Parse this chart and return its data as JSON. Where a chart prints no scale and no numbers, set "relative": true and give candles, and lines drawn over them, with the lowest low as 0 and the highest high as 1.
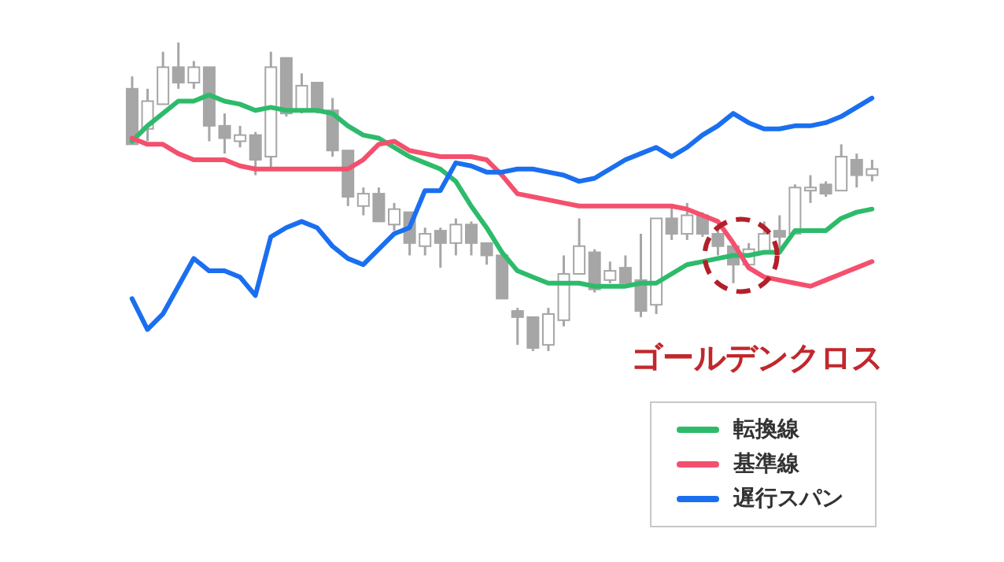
{
  "chart_data": {
    "type": "candlestick",
    "relative": true,
    "color": "#a6a6a6",
    "categories": [
      null,
      null,
      null,
      null,
      null,
      null,
      null,
      null,
      null,
      null,
      null,
      null,
      null,
      null,
      null,
      null,
      null,
      null,
      null,
      null,
      null,
      null,
      null,
      null,
      null,
      null,
      null,
      null,
      null,
      null,
      null,
      null,
      null,
      null,
      null,
      null,
      null,
      null,
      null,
      null,
      null,
      null,
      null,
      null,
      null,
      null,
      null,
      null,
      null
    ],
    "ohlc": [
      [
        0.85,
        0.89,
        0.67,
        0.67
      ],
      [
        0.72,
        0.85,
        0.68,
        0.81
      ],
      [
        0.8,
        0.97,
        0.8,
        0.92
      ],
      [
        0.92,
        1,
        0.85,
        0.87
      ],
      [
        0.87,
        0.94,
        0.85,
        0.92
      ],
      [
        0.92,
        0.92,
        0.68,
        0.73
      ],
      [
        0.73,
        0.77,
        0.64,
        0.69
      ],
      [
        0.68,
        0.73,
        0.66,
        0.7
      ],
      [
        0.7,
        0.71,
        0.57,
        0.62
      ],
      [
        0.63,
        0.97,
        0.59,
        0.92
      ],
      [
        0.95,
        0.95,
        0.76,
        0.77
      ],
      [
        0.78,
        0.9,
        0.77,
        0.86
      ],
      [
        0.87,
        0.87,
        0.77,
        0.78
      ],
      [
        0.78,
        0.82,
        0.63,
        0.65
      ],
      [
        0.65,
        0.65,
        0.47,
        0.5
      ],
      [
        0.47,
        0.53,
        0.44,
        0.51
      ],
      [
        0.51,
        0.53,
        0.42,
        0.42
      ],
      [
        0.41,
        0.48,
        0.39,
        0.46
      ],
      [
        0.45,
        0.45,
        0.31,
        0.35
      ],
      [
        0.34,
        0.4,
        0.31,
        0.38
      ],
      [
        0.39,
        0.4,
        0.27,
        0.35
      ],
      [
        0.35,
        0.43,
        0.31,
        0.41
      ],
      [
        0.41,
        0.42,
        0.31,
        0.35
      ],
      [
        0.35,
        0.35,
        0.28,
        0.31
      ],
      [
        0.31,
        0.31,
        0.17,
        0.17
      ],
      [
        0.13,
        0.14,
        0.02,
        0.11
      ],
      [
        0.11,
        0.11,
        0,
        0.01
      ],
      [
        0.02,
        0.14,
        0,
        0.12
      ],
      [
        0.1,
        0.31,
        0.08,
        0.25
      ],
      [
        0.25,
        0.43,
        0.25,
        0.34
      ],
      [
        0.32,
        0.33,
        0.19,
        0.2
      ],
      [
        0.23,
        0.29,
        0.22,
        0.26
      ],
      [
        0.27,
        0.31,
        0.22,
        0.22
      ],
      [
        0.23,
        0.38,
        0.11,
        0.13
      ],
      [
        0.15,
        0.43,
        0.12,
        0.43
      ],
      [
        0.43,
        0.47,
        0.36,
        0.38
      ],
      [
        0.38,
        0.48,
        0.36,
        0.44
      ],
      [
        0.44,
        0.45,
        0.37,
        0.38
      ],
      [
        0.38,
        0.4,
        0.31,
        0.34
      ],
      [
        0.34,
        0.34,
        0.22,
        0.28
      ],
      [
        0.28,
        0.35,
        0.28,
        0.33
      ],
      [
        0.32,
        0.42,
        0.32,
        0.38
      ],
      [
        0.39,
        0.44,
        0.33,
        0.37
      ],
      [
        0.38,
        0.54,
        0.38,
        0.53
      ],
      [
        0.52,
        0.57,
        0.48,
        0.53
      ],
      [
        0.54,
        0.55,
        0.5,
        0.51
      ],
      [
        0.52,
        0.67,
        0.52,
        0.63
      ],
      [
        0.62,
        0.64,
        0.53,
        0.57
      ],
      [
        0.57,
        0.62,
        0.55,
        0.59
      ]
    ],
    "series": [
      {
        "name": "転換線",
        "type": "line",
        "color": "#2dbb6b",
        "values": [
          0.68,
          0.73,
          0.77,
          0.81,
          0.81,
          0.83,
          0.81,
          0.8,
          0.78,
          0.79,
          0.78,
          0.78,
          0.78,
          0.77,
          0.73,
          0.7,
          0.69,
          0.66,
          0.63,
          0.61,
          0.59,
          0.55,
          0.47,
          0.4,
          0.32,
          0.26,
          0.24,
          0.22,
          0.22,
          0.22,
          0.21,
          0.21,
          0.21,
          0.22,
          0.22,
          0.25,
          0.28,
          0.29,
          0.3,
          0.31,
          0.31,
          0.32,
          0.32,
          0.39,
          0.39,
          0.39,
          0.43,
          0.45,
          0.46
        ]
      },
      {
        "name": "基準線",
        "type": "line",
        "color": "#f4506e",
        "values": [
          0.69,
          0.67,
          0.67,
          0.64,
          0.62,
          0.62,
          0.62,
          0.6,
          0.59,
          0.59,
          0.59,
          0.59,
          0.59,
          0.59,
          0.59,
          0.62,
          0.67,
          0.68,
          0.65,
          0.64,
          0.63,
          0.63,
          0.63,
          0.62,
          0.57,
          0.51,
          0.5,
          0.49,
          0.48,
          0.47,
          0.47,
          0.47,
          0.47,
          0.47,
          0.47,
          0.47,
          0.46,
          0.44,
          0.42,
          0.35,
          0.27,
          0.24,
          0.23,
          0.22,
          0.21,
          0.23,
          0.25,
          0.27,
          0.29
        ]
      },
      {
        "name": "遅行スパン",
        "type": "line",
        "color": "#1a6ff0",
        "values": [
          0.17,
          0.07,
          0.12,
          0.21,
          0.3,
          0.26,
          0.26,
          0.24,
          0.18,
          0.37,
          0.4,
          0.42,
          0.4,
          0.34,
          0.3,
          0.28,
          0.33,
          0.38,
          0.4,
          0.52,
          0.52,
          0.61,
          0.6,
          0.58,
          0.58,
          0.59,
          0.59,
          0.58,
          0.57,
          0.55,
          0.56,
          0.59,
          0.62,
          0.64,
          0.66,
          0.63,
          0.66,
          0.7,
          0.73,
          0.77,
          0.74,
          0.72,
          0.72,
          0.73,
          0.73,
          0.74,
          0.76,
          0.79,
          0.82
        ]
      }
    ],
    "annotations": [
      "ゴールデンクロス"
    ],
    "legend": "bottom right",
    "line_style": "solid"
  }
}
